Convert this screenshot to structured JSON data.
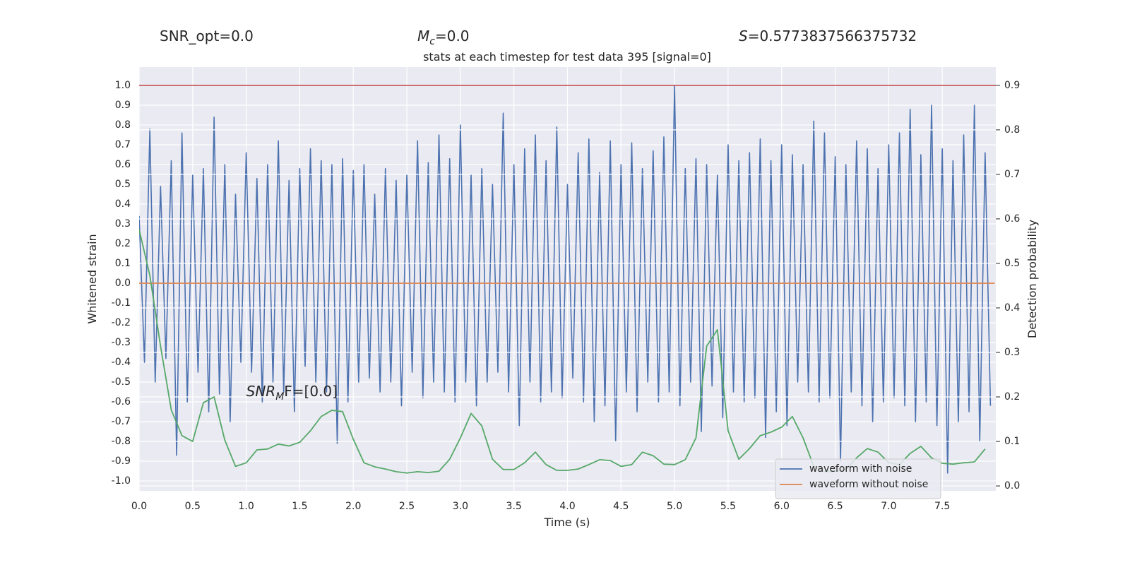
{
  "chart_data": {
    "type": "line",
    "title": "stats at each timestep for test data 395 [signal=0]",
    "annotations": [
      {
        "text": "SNR_opt=0.0"
      },
      {
        "italic": "M",
        "sub": "c",
        "text": "=0.0"
      },
      {
        "italic": "S",
        "text": "=0.5773837566375732"
      },
      {
        "italic": "SNR",
        "sub": "M",
        "text": "F=[0.0]"
      }
    ],
    "xlabel": "Time (s)",
    "ylabel": "Whitened strain",
    "y2label": "Detection probability",
    "xlim": [
      0,
      8
    ],
    "ylim": [
      -1.05,
      1.093
    ],
    "y2lim": [
      -0.011,
      0.941
    ],
    "xticks": [
      {
        "value": 0,
        "label": "0.0"
      },
      0.5,
      {
        "value": 1,
        "label": "1.0"
      },
      1.5,
      {
        "value": 2,
        "label": "2.0"
      },
      2.5,
      {
        "value": 3,
        "label": "3.0"
      },
      3.5,
      {
        "value": 4,
        "label": "4.0"
      },
      4.5,
      {
        "value": 5,
        "label": "5.0"
      },
      5.5,
      {
        "value": 6,
        "label": "6.0"
      },
      6.5,
      {
        "value": 7,
        "label": "7.0"
      },
      7.5
    ],
    "yticks": [
      {
        "value": -1,
        "label": "-1.0"
      },
      -0.9,
      -0.8,
      -0.7,
      -0.6,
      -0.5,
      -0.4,
      -0.3,
      -0.2,
      -0.1,
      {
        "value": 0,
        "label": "0.0"
      },
      0.1,
      0.2,
      0.3,
      0.4,
      0.5,
      0.6,
      0.7,
      0.8,
      0.9,
      {
        "value": 1,
        "label": "1.0"
      }
    ],
    "y2ticks": [
      {
        "value": 0,
        "label": "0.0"
      },
      0.1,
      0.2,
      0.3,
      0.4,
      0.5,
      0.6,
      0.7,
      0.8,
      0.9
    ],
    "grid": true,
    "legend": "lower right",
    "hline": {
      "axis": "y2",
      "value": 0.9,
      "color": "#c44e52"
    },
    "series": [
      {
        "name": "waveform with noise",
        "color": "#4c72b0",
        "x": [
          0,
          0.05,
          0.1,
          0.15,
          0.2,
          0.25,
          0.3,
          0.35,
          0.4,
          0.45,
          0.5,
          0.55,
          0.6,
          0.65,
          0.7,
          0.75,
          0.8,
          0.85,
          0.9,
          0.95,
          1,
          1.05,
          1.1,
          1.15,
          1.2,
          1.25,
          1.3,
          1.35,
          1.4,
          1.45,
          1.5,
          1.55,
          1.6,
          1.65,
          1.7,
          1.75,
          1.8,
          1.85,
          1.9,
          1.95,
          2,
          2.05,
          2.1,
          2.15,
          2.2,
          2.25,
          2.3,
          2.35,
          2.4,
          2.45,
          2.5,
          2.55,
          2.6,
          2.65,
          2.7,
          2.75,
          2.8,
          2.85,
          2.9,
          2.95,
          3,
          3.05,
          3.1,
          3.15,
          3.2,
          3.25,
          3.3,
          3.35,
          3.4,
          3.45,
          3.5,
          3.55,
          3.6,
          3.65,
          3.7,
          3.75,
          3.8,
          3.85,
          3.9,
          3.95,
          4,
          4.05,
          4.1,
          4.15,
          4.2,
          4.25,
          4.3,
          4.35,
          4.4,
          4.45,
          4.5,
          4.55,
          4.6,
          4.65,
          4.7,
          4.75,
          4.8,
          4.85,
          4.9,
          4.95,
          5,
          5.05,
          5.1,
          5.15,
          5.2,
          5.25,
          5.3,
          5.35,
          5.4,
          5.45,
          5.5,
          5.55,
          5.6,
          5.65,
          5.7,
          5.75,
          5.8,
          5.85,
          5.9,
          5.95,
          6,
          6.05,
          6.1,
          6.15,
          6.2,
          6.25,
          6.3,
          6.35,
          6.4,
          6.45,
          6.5,
          6.55,
          6.6,
          6.65,
          6.7,
          6.75,
          6.8,
          6.85,
          6.9,
          6.95,
          7,
          7.05,
          7.1,
          7.15,
          7.2,
          7.25,
          7.3,
          7.35,
          7.4,
          7.45,
          7.5,
          7.55,
          7.6,
          7.65,
          7.7,
          7.75,
          7.8,
          7.85,
          7.9,
          7.95
        ],
        "values": [
          0.34,
          -0.4,
          0.78,
          -0.5,
          0.49,
          -0.38,
          0.62,
          -0.87,
          0.76,
          -0.6,
          0.55,
          -0.45,
          0.58,
          -0.65,
          0.84,
          -0.56,
          0.6,
          -0.7,
          0.45,
          -0.4,
          0.66,
          -0.45,
          0.53,
          -0.6,
          0.6,
          -0.5,
          0.72,
          -0.55,
          0.52,
          -0.65,
          0.58,
          -0.42,
          0.68,
          -0.5,
          0.62,
          -0.55,
          0.6,
          -0.81,
          0.63,
          -0.6,
          0.57,
          -0.5,
          0.6,
          -0.48,
          0.45,
          -0.55,
          0.58,
          -0.5,
          0.52,
          -0.62,
          0.55,
          -0.45,
          0.72,
          -0.58,
          0.61,
          -0.5,
          0.75,
          -0.55,
          0.63,
          -0.6,
          0.8,
          -0.5,
          0.55,
          -0.62,
          0.58,
          -0.5,
          0.5,
          -0.45,
          0.86,
          -0.55,
          0.6,
          -0.72,
          0.68,
          -0.5,
          0.75,
          -0.6,
          0.62,
          -0.55,
          0.79,
          -0.58,
          0.5,
          -0.48,
          0.66,
          -0.6,
          0.73,
          -0.7,
          0.56,
          -0.62,
          0.72,
          -0.8,
          0.6,
          -0.55,
          0.71,
          -0.65,
          0.58,
          -0.5,
          0.67,
          -0.6,
          0.74,
          -0.55,
          1.0,
          -0.62,
          0.58,
          -0.5,
          0.63,
          -0.75,
          0.6,
          -0.52,
          0.55,
          -0.68,
          0.7,
          -0.55,
          0.62,
          -0.6,
          0.66,
          -0.58,
          0.73,
          -0.78,
          0.62,
          -0.65,
          0.7,
          -0.72,
          0.65,
          -0.5,
          0.6,
          -0.55,
          0.82,
          -0.6,
          0.76,
          -0.58,
          0.64,
          -0.9,
          0.6,
          -0.55,
          0.72,
          -0.62,
          0.68,
          -0.7,
          0.58,
          -0.6,
          0.7,
          -0.58,
          0.76,
          -0.62,
          0.88,
          -0.7,
          0.65,
          -0.6,
          0.9,
          -0.72,
          0.68,
          -0.96,
          0.62,
          -0.7,
          0.75,
          -0.65,
          0.9,
          -0.8,
          0.66,
          -0.62
        ]
      },
      {
        "name": "waveform without noise",
        "color": "#dd8452",
        "x": [
          0,
          7.99
        ],
        "values": [
          0,
          0
        ]
      },
      {
        "color": "#55a868",
        "axis": "y2",
        "x": [
          0,
          0.1,
          0.2,
          0.3,
          0.4,
          0.5,
          0.6,
          0.7,
          0.8,
          0.9,
          1,
          1.1,
          1.2,
          1.3,
          1.4,
          1.5,
          1.6,
          1.7,
          1.8,
          1.9,
          2,
          2.1,
          2.2,
          2.3,
          2.4,
          2.5,
          2.6,
          2.7,
          2.8,
          2.9,
          3,
          3.1,
          3.2,
          3.3,
          3.4,
          3.5,
          3.6,
          3.7,
          3.8,
          3.9,
          4,
          4.1,
          4.2,
          4.3,
          4.4,
          4.5,
          4.6,
          4.7,
          4.8,
          4.9,
          5,
          5.1,
          5.2,
          5.3,
          5.4,
          5.5,
          5.6,
          5.7,
          5.8,
          5.9,
          6,
          6.1,
          6.2,
          6.3,
          6.4,
          6.5,
          6.6,
          6.7,
          6.8,
          6.9,
          7,
          7.1,
          7.2,
          7.3,
          7.4,
          7.5,
          7.6,
          7.7,
          7.8,
          7.9
        ],
        "values": [
          0.576,
          0.473,
          0.314,
          0.171,
          0.113,
          0.1,
          0.187,
          0.2,
          0.103,
          0.044,
          0.052,
          0.081,
          0.083,
          0.094,
          0.09,
          0.098,
          0.124,
          0.156,
          0.17,
          0.167,
          0.105,
          0.052,
          0.043,
          0.038,
          0.032,
          0.029,
          0.032,
          0.03,
          0.033,
          0.06,
          0.108,
          0.163,
          0.135,
          0.06,
          0.037,
          0.037,
          0.052,
          0.076,
          0.048,
          0.035,
          0.035,
          0.038,
          0.048,
          0.059,
          0.057,
          0.044,
          0.048,
          0.076,
          0.068,
          0.049,
          0.048,
          0.059,
          0.108,
          0.314,
          0.351,
          0.124,
          0.06,
          0.084,
          0.113,
          0.121,
          0.132,
          0.156,
          0.108,
          0.044,
          0.032,
          0.033,
          0.037,
          0.063,
          0.084,
          0.076,
          0.052,
          0.048,
          0.073,
          0.089,
          0.063,
          0.051,
          0.049,
          0.052,
          0.054,
          0.083
        ]
      }
    ]
  }
}
